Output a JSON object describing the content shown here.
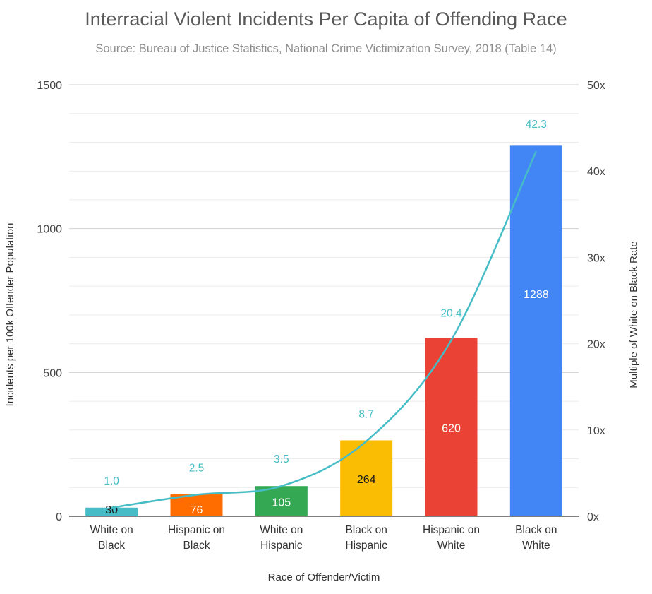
{
  "chart_data": {
    "type": "bar",
    "title": "Interracial Violent Incidents Per Capita of Offending Race",
    "subtitle": "Source: Bureau of Justice Statistics, National Crime Victimization Survey, 2018 (Table 14)",
    "xlabel": "Race of Offender/Victim",
    "ylabel": "Incidents per 100k Offender Population",
    "ylabel_right": "Multiple of White on Black Rate",
    "ylim": [
      0,
      1500
    ],
    "ylim_right": [
      0,
      50
    ],
    "yticks": [
      "0",
      "500",
      "1000",
      "1500"
    ],
    "yticks_right": [
      "0x",
      "10x",
      "20x",
      "30x",
      "40x",
      "50x"
    ],
    "categories": [
      [
        "White on",
        "Black"
      ],
      [
        "Hispanic on",
        "Black"
      ],
      [
        "White on",
        "Hispanic"
      ],
      [
        "Black on",
        "Hispanic"
      ],
      [
        "Hispanic on",
        "White"
      ],
      [
        "Black on",
        "White"
      ]
    ],
    "series": [
      {
        "name": "Incidents per 100k Offender Population",
        "axis": "left",
        "values": [
          30,
          76,
          105,
          264,
          620,
          1288
        ],
        "labels": [
          "30",
          "76",
          "105",
          "264",
          "620",
          "1288"
        ],
        "colors": [
          "#46bdc6",
          "#ff6d01",
          "#34a853",
          "#fbbc04",
          "#ea4335",
          "#4285f4"
        ]
      },
      {
        "name": "Multiple of White on Black Rate",
        "axis": "right",
        "type": "line",
        "values": [
          1.0,
          2.5,
          3.5,
          8.7,
          20.4,
          42.3
        ],
        "labels": [
          "1.0",
          "2.5",
          "3.5",
          "8.7",
          "20.4",
          "42.3"
        ],
        "color": "#46bdc6"
      }
    ]
  }
}
